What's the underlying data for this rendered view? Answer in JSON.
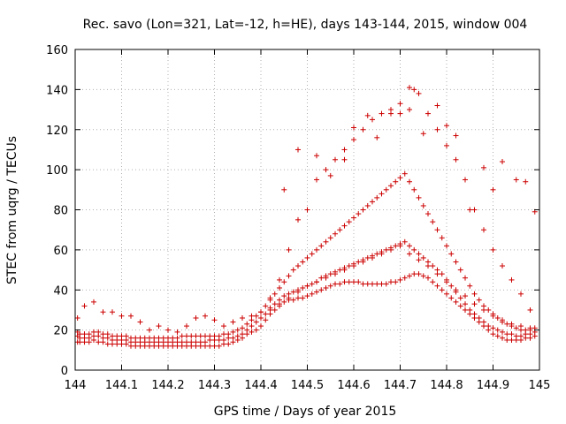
{
  "chart_data": {
    "type": "scatter",
    "title": "Rec. savo (Lon=321, Lat=-12, h=HE), days 143-144, 2015, window 004",
    "xlabel": "GPS time / Days of year 2015",
    "ylabel": "STEC from uqrg / TECUs",
    "xlim": [
      144,
      145
    ],
    "ylim": [
      0,
      160
    ],
    "xticks": [
      "144",
      "144.1",
      "144.2",
      "144.3",
      "144.4",
      "144.5",
      "144.6",
      "144.7",
      "144.8",
      "144.9",
      "145"
    ],
    "yticks": [
      "0",
      "20",
      "40",
      "60",
      "80",
      "100",
      "120",
      "140",
      "160"
    ],
    "grid": true,
    "legend": "none",
    "marker": "plus",
    "color": "#cc0000",
    "series": [
      {
        "x": [
          144.005,
          144.01,
          144.02,
          144.03,
          144.04,
          144.05,
          144.06,
          144.07,
          144.08,
          144.09,
          144.1,
          144.11,
          144.12,
          144.13,
          144.14,
          144.15,
          144.16,
          144.17,
          144.18,
          144.19,
          144.2,
          144.21,
          144.22,
          144.23,
          144.24,
          144.25,
          144.26,
          144.27,
          144.28,
          144.29,
          144.3,
          144.31,
          144.32,
          144.33,
          144.34,
          144.35,
          144.36,
          144.37,
          144.38,
          144.39,
          144.4,
          144.41,
          144.42,
          144.43,
          144.44,
          144.45,
          144.46,
          144.47,
          144.48,
          144.49,
          144.5,
          144.51,
          144.52,
          144.53,
          144.54,
          144.55,
          144.56,
          144.57,
          144.58,
          144.59,
          144.6,
          144.61,
          144.62,
          144.63,
          144.64,
          144.65,
          144.66,
          144.67,
          144.68,
          144.69,
          144.7,
          144.71,
          144.72,
          144.73,
          144.74,
          144.75,
          144.76,
          144.77,
          144.78,
          144.79,
          144.8,
          144.81,
          144.82,
          144.83,
          144.84,
          144.85,
          144.86,
          144.87,
          144.88,
          144.89,
          144.9,
          144.91,
          144.92,
          144.93,
          144.94,
          144.95,
          144.96,
          144.97,
          144.98,
          144.99
        ],
        "y": [
          14,
          14,
          14,
          14,
          15,
          14,
          14,
          13,
          13,
          13,
          13,
          13,
          12,
          12,
          12,
          12,
          12,
          12,
          12,
          12,
          12,
          12,
          12,
          12,
          12,
          12,
          12,
          12,
          12,
          12,
          12,
          12,
          13,
          13,
          14,
          15,
          16,
          18,
          19,
          20,
          22,
          25,
          28,
          30,
          32,
          34,
          35,
          35,
          36,
          36,
          37,
          38,
          39,
          40,
          41,
          42,
          43,
          43,
          44,
          44,
          44,
          44,
          43,
          43,
          43,
          43,
          43,
          43,
          44,
          44,
          45,
          46,
          47,
          48,
          48,
          47,
          46,
          44,
          42,
          40,
          38,
          36,
          34,
          32,
          30,
          28,
          26,
          24,
          22,
          20,
          18,
          17,
          16,
          15,
          15,
          15,
          15,
          16,
          16,
          17
        ]
      },
      {
        "x": [
          144.005,
          144.01,
          144.02,
          144.03,
          144.04,
          144.05,
          144.06,
          144.07,
          144.08,
          144.09,
          144.1,
          144.11,
          144.12,
          144.13,
          144.14,
          144.15,
          144.16,
          144.17,
          144.18,
          144.19,
          144.2,
          144.21,
          144.22,
          144.23,
          144.24,
          144.25,
          144.26,
          144.27,
          144.28,
          144.29,
          144.3,
          144.31,
          144.32,
          144.33,
          144.34,
          144.35,
          144.36,
          144.37,
          144.38,
          144.39,
          144.4,
          144.41,
          144.42,
          144.43,
          144.44,
          144.45,
          144.46,
          144.47,
          144.48,
          144.49,
          144.5,
          144.51,
          144.52,
          144.53,
          144.54,
          144.55,
          144.56,
          144.57,
          144.58,
          144.59,
          144.6,
          144.61,
          144.62,
          144.63,
          144.64,
          144.65,
          144.66,
          144.67,
          144.68,
          144.69,
          144.7,
          144.71,
          144.72,
          144.73,
          144.74,
          144.75,
          144.76,
          144.77,
          144.78,
          144.79,
          144.8,
          144.81,
          144.82,
          144.83,
          144.84,
          144.85,
          144.86,
          144.87,
          144.88,
          144.89,
          144.9,
          144.91,
          144.92,
          144.93,
          144.94,
          144.95,
          144.96,
          144.97,
          144.98,
          144.99
        ],
        "y": [
          17,
          16,
          16,
          16,
          17,
          17,
          16,
          16,
          15,
          15,
          15,
          15,
          14,
          14,
          14,
          14,
          14,
          14,
          14,
          14,
          14,
          14,
          14,
          14,
          14,
          14,
          14,
          14,
          14,
          15,
          15,
          15,
          15,
          16,
          16,
          17,
          18,
          20,
          22,
          24,
          26,
          28,
          31,
          33,
          35,
          37,
          38,
          39,
          40,
          41,
          42,
          43,
          44,
          46,
          47,
          48,
          49,
          50,
          51,
          52,
          53,
          54,
          55,
          56,
          57,
          58,
          59,
          60,
          61,
          62,
          63,
          64,
          62,
          60,
          58,
          56,
          54,
          52,
          50,
          48,
          45,
          42,
          39,
          36,
          33,
          30,
          28,
          26,
          24,
          22,
          21,
          20,
          19,
          18,
          18,
          17,
          17,
          18,
          18,
          19
        ]
      },
      {
        "x": [
          144.005,
          144.01,
          144.02,
          144.03,
          144.04,
          144.05,
          144.06,
          144.07,
          144.08,
          144.09,
          144.1,
          144.11,
          144.12,
          144.13,
          144.14,
          144.15,
          144.16,
          144.17,
          144.18,
          144.19,
          144.2,
          144.21,
          144.22,
          144.23,
          144.24,
          144.25,
          144.26,
          144.27,
          144.28,
          144.29,
          144.3,
          144.31,
          144.32,
          144.33,
          144.34,
          144.35,
          144.36,
          144.37,
          144.38,
          144.39,
          144.4,
          144.41,
          144.42,
          144.43,
          144.44,
          144.45,
          144.46,
          144.47,
          144.48,
          144.49,
          144.5,
          144.51,
          144.52,
          144.53,
          144.54,
          144.55,
          144.56,
          144.57,
          144.58,
          144.59,
          144.6,
          144.61,
          144.62,
          144.63,
          144.64,
          144.65,
          144.66,
          144.67,
          144.68,
          144.69,
          144.7,
          144.71,
          144.72,
          144.73,
          144.74,
          144.75,
          144.76,
          144.77,
          144.78,
          144.79,
          144.8,
          144.81,
          144.82,
          144.83,
          144.84,
          144.85,
          144.86,
          144.87,
          144.88,
          144.89,
          144.9,
          144.91,
          144.92,
          144.93,
          144.94,
          144.95,
          144.96,
          144.97,
          144.98,
          144.99
        ],
        "y": [
          19,
          18,
          18,
          18,
          19,
          19,
          18,
          18,
          17,
          17,
          17,
          17,
          16,
          16,
          16,
          16,
          16,
          16,
          16,
          16,
          16,
          16,
          16,
          17,
          17,
          17,
          17,
          17,
          17,
          17,
          17,
          17,
          18,
          18,
          19,
          20,
          21,
          23,
          25,
          27,
          29,
          32,
          35,
          38,
          41,
          44,
          47,
          50,
          52,
          54,
          56,
          58,
          60,
          62,
          64,
          66,
          68,
          70,
          72,
          74,
          76,
          78,
          80,
          82,
          84,
          86,
          88,
          90,
          92,
          94,
          96,
          98,
          94,
          90,
          86,
          82,
          78,
          74,
          70,
          66,
          62,
          58,
          54,
          50,
          46,
          42,
          38,
          35,
          32,
          30,
          28,
          26,
          24,
          23,
          22,
          21,
          20,
          20,
          21,
          21
        ]
      },
      {
        "x": [
          144.005,
          144.02,
          144.04,
          144.06,
          144.08,
          144.1,
          144.12,
          144.14,
          144.16,
          144.18,
          144.2,
          144.22,
          144.24,
          144.26,
          144.28,
          144.3,
          144.32,
          144.34,
          144.36,
          144.38,
          144.4,
          144.42,
          144.44,
          144.46,
          144.48,
          144.5,
          144.52,
          144.54,
          144.56,
          144.58,
          144.6,
          144.62,
          144.64,
          144.66,
          144.68,
          144.7,
          144.72,
          144.73,
          144.74,
          144.76,
          144.78,
          144.8,
          144.82,
          144.84,
          144.86,
          144.88,
          144.9,
          144.92,
          144.94,
          144.96,
          144.98
        ],
        "y": [
          26,
          32,
          34,
          29,
          29,
          27,
          27,
          24,
          20,
          22,
          20,
          19,
          22,
          26,
          27,
          25,
          22,
          24,
          26,
          27,
          29,
          36,
          45,
          60,
          75,
          80,
          95,
          100,
          105,
          110,
          115,
          120,
          125,
          128,
          130,
          133,
          141,
          140,
          138,
          128,
          120,
          112,
          105,
          95,
          80,
          70,
          60,
          52,
          45,
          38,
          30
        ]
      },
      {
        "x": [
          144.42,
          144.44,
          144.46,
          144.48,
          144.5,
          144.52,
          144.54,
          144.56,
          144.58,
          144.6,
          144.62,
          144.64,
          144.66,
          144.68,
          144.7,
          144.72,
          144.74,
          144.76,
          144.78,
          144.8,
          144.82,
          144.84,
          144.86,
          144.88,
          144.9,
          144.92,
          144.94,
          144.96,
          144.98
        ],
        "y": [
          30,
          33,
          36,
          39,
          42,
          44,
          46,
          48,
          50,
          52,
          54,
          56,
          58,
          60,
          62,
          58,
          55,
          52,
          48,
          44,
          40,
          37,
          33,
          30,
          27,
          25,
          23,
          22,
          20
        ]
      },
      {
        "x": [
          144.45,
          144.48,
          144.5,
          144.52,
          144.55,
          144.58,
          144.6,
          144.63,
          144.65,
          144.68,
          144.7,
          144.72,
          144.75,
          144.78,
          144.8,
          144.82,
          144.85,
          144.88,
          144.9,
          144.92,
          144.95,
          144.97,
          144.99
        ],
        "y": [
          90,
          110,
          80,
          107,
          97,
          105,
          121,
          127,
          116,
          128,
          128,
          130,
          118,
          132,
          122,
          117,
          80,
          101,
          90,
          104,
          95,
          94,
          79
        ]
      }
    ]
  }
}
